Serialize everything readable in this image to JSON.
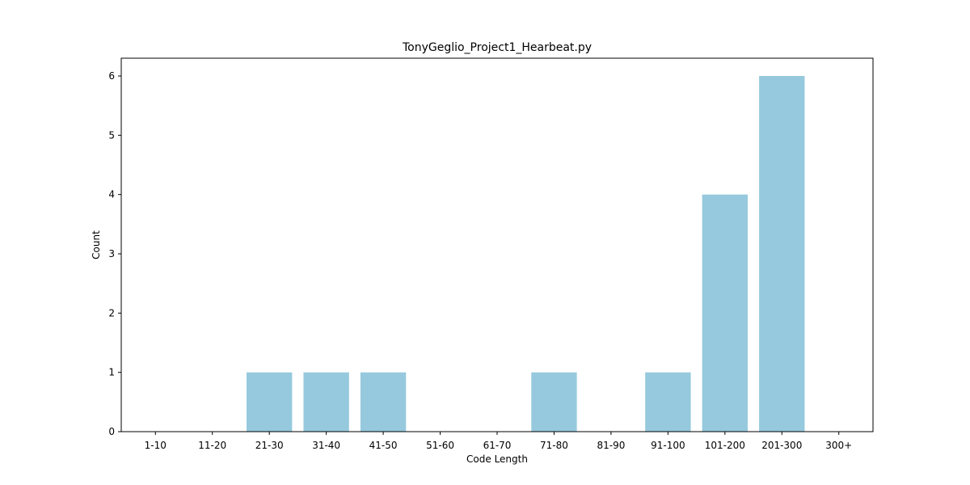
{
  "chart_data": {
    "type": "bar",
    "title": "TonyGeglio_Project1_Hearbeat.py",
    "xlabel": "Code Length",
    "ylabel": "Count",
    "categories": [
      "1-10",
      "11-20",
      "21-30",
      "31-40",
      "41-50",
      "51-60",
      "61-70",
      "71-80",
      "81-90",
      "91-100",
      "101-200",
      "201-300",
      "300+"
    ],
    "values": [
      0,
      0,
      1,
      1,
      1,
      0,
      0,
      1,
      0,
      1,
      4,
      6,
      0
    ],
    "yticks": [
      "0",
      "1",
      "2",
      "3",
      "4",
      "5",
      "6"
    ],
    "ylim": [
      0,
      6.3
    ],
    "grid": false,
    "colors": {
      "bar": "#96c9dd",
      "axis": "#000000",
      "background": "#ffffff"
    }
  }
}
